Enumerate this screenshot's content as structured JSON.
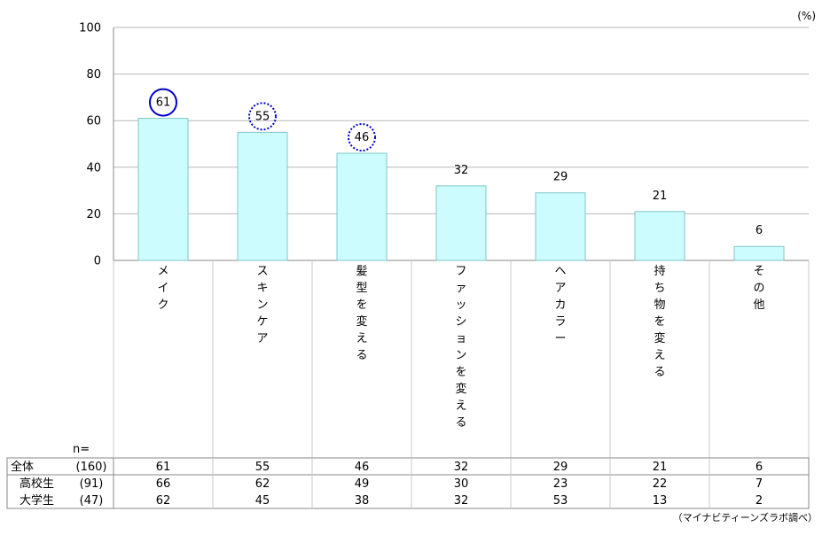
{
  "unit_label": "(%)",
  "source_note": "（マイナビティーンズラボ調べ）",
  "n_label": "n=",
  "chart_data": {
    "type": "bar",
    "ylim": [
      0,
      100
    ],
    "yticks": [
      0,
      20,
      40,
      60,
      80,
      100
    ],
    "grid": true,
    "categories": [
      "メイク",
      "スキンケア",
      "髪型を変える",
      "ファッションを変える",
      "ヘアカラー",
      "持ち物を変える",
      "その他"
    ],
    "values": [
      61,
      55,
      46,
      32,
      29,
      21,
      6
    ],
    "highlights": [
      {
        "index": 0,
        "style": "solid"
      },
      {
        "index": 1,
        "style": "dotted"
      },
      {
        "index": 2,
        "style": "dotted"
      }
    ],
    "bar_color": "#ccfcfd",
    "bar_border": "#7fc7c9",
    "circle_color": "#0000cc"
  },
  "table": {
    "rows": [
      {
        "label": "全体",
        "n": "(160)",
        "values": [
          61,
          55,
          46,
          32,
          29,
          21,
          6
        ]
      },
      {
        "label": "高校生",
        "n": "(91)",
        "values": [
          66,
          62,
          49,
          30,
          23,
          22,
          7
        ]
      },
      {
        "label": "大学生",
        "n": "(47)",
        "values": [
          62,
          45,
          38,
          32,
          53,
          13,
          2
        ]
      }
    ]
  }
}
